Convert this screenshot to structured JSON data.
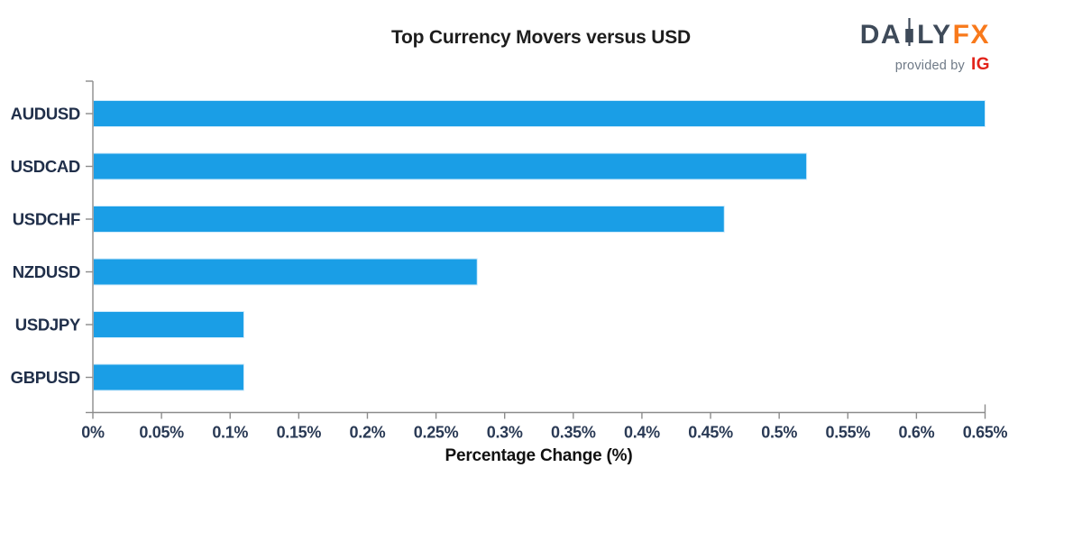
{
  "header": {
    "logo": {
      "daily_left": "DA",
      "daily_right": "LY",
      "fx": "FX",
      "provided_by": "provided by",
      "ig": "IG"
    }
  },
  "colors": {
    "bar": "#1A9EE6",
    "bar_border": "#CDEAFB",
    "axis": "#8C8C8C",
    "tick_label": "#2A3A55",
    "category_label": "#202F4A",
    "title": "#1D1D1D",
    "logo_slate": "#3E4A59",
    "logo_orange": "#F8791B",
    "logo_gray": "#6F7A87",
    "logo_red": "#E2231A"
  },
  "chart_data": {
    "type": "bar",
    "orientation": "horizontal",
    "title": "Top Currency Movers versus USD",
    "xlabel": "Percentage Change (%)",
    "ylabel": "",
    "categories": [
      "AUDUSD",
      "USDCAD",
      "USDCHF",
      "NZDUSD",
      "USDJPY",
      "GBPUSD"
    ],
    "values": [
      0.65,
      0.52,
      0.46,
      0.28,
      0.11,
      0.11
    ],
    "unit": "%",
    "xlim": [
      0,
      0.65
    ],
    "x_tick_values": [
      0,
      0.05,
      0.1,
      0.15,
      0.2,
      0.25,
      0.3,
      0.35,
      0.4,
      0.45,
      0.5,
      0.55,
      0.6,
      0.65
    ],
    "x_tick_labels": [
      "0%",
      "0.05%",
      "0.1%",
      "0.15%",
      "0.2%",
      "0.25%",
      "0.3%",
      "0.35%",
      "0.4%",
      "0.45%",
      "0.5%",
      "0.55%",
      "0.6%",
      "0.65%"
    ],
    "grid": false,
    "legend": null
  }
}
